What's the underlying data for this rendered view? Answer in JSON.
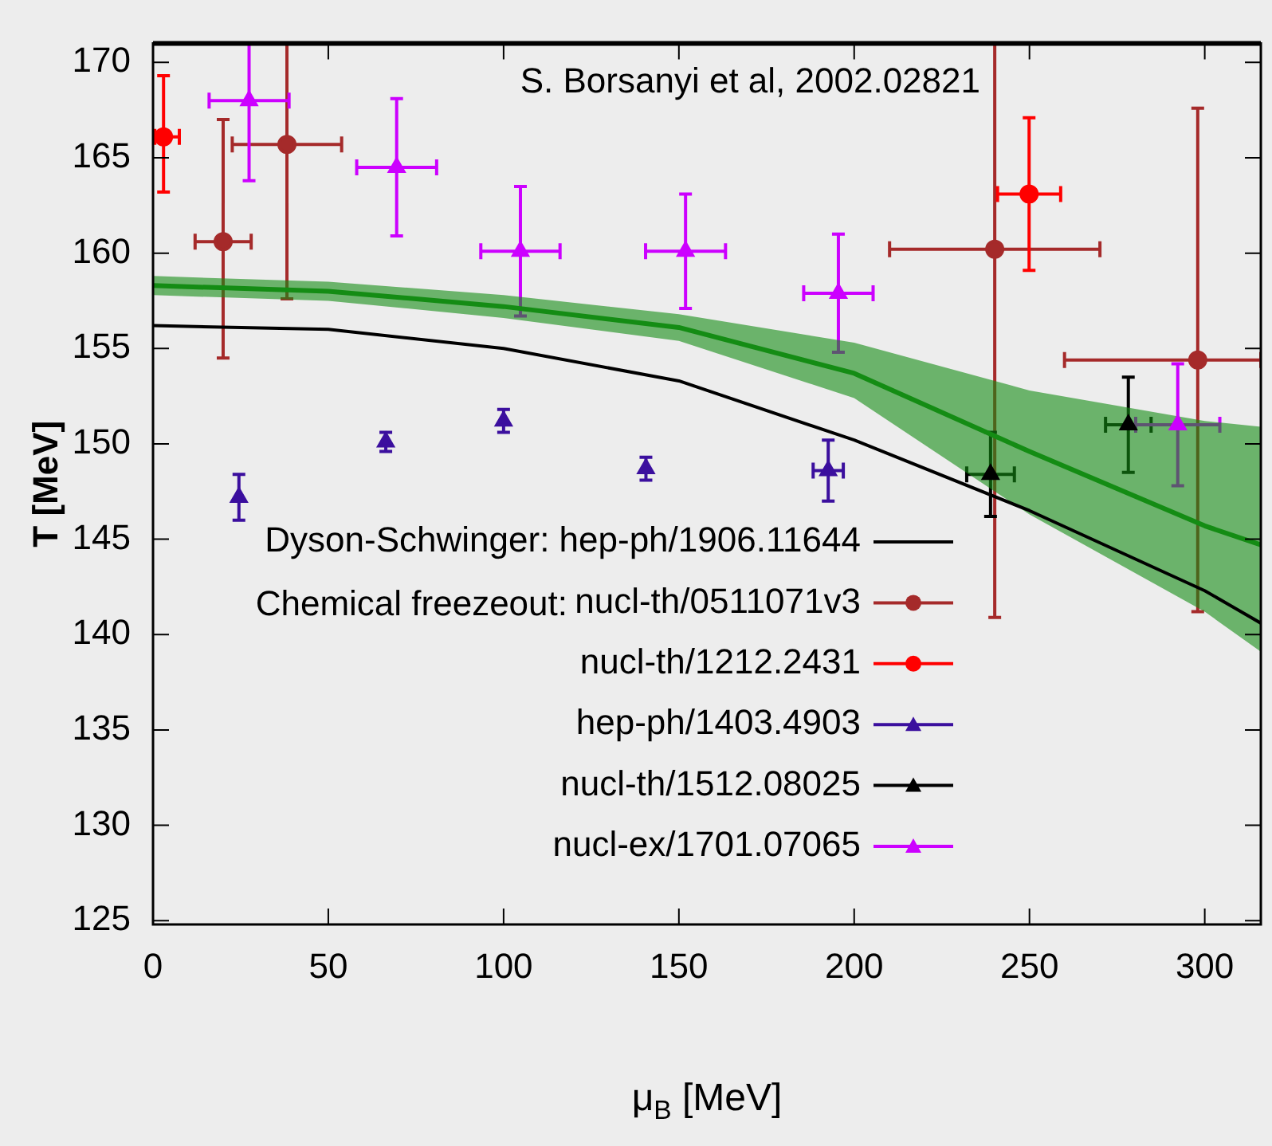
{
  "chart_data": {
    "type": "scatter",
    "xlabel": "μ$_{B}$ [MeV]",
    "ylabel": "T [MeV]",
    "xlim": [
      0,
      316
    ],
    "ylim": [
      124.8,
      171
    ],
    "xticks": [
      0,
      50,
      100,
      150,
      200,
      250,
      300
    ],
    "yticks": [
      125,
      130,
      135,
      140,
      145,
      150,
      155,
      160,
      165,
      170
    ],
    "grid": false,
    "legend": "bottom",
    "annotations": [
      "S. Borsanyi et al, 2002.02821",
      "Chemical freezeout:"
    ],
    "series": [
      {
        "type": "line",
        "color": "#148c14",
        "marker": "none",
        "x": [
          0,
          50,
          100,
          150,
          200,
          250,
          300,
          316
        ],
        "values": [
          158.3,
          158.0,
          157.2,
          156.1,
          153.7,
          149.6,
          145.7,
          144.7
        ],
        "lower": [
          157.8,
          157.5,
          156.6,
          155.4,
          152.4,
          146.3,
          141.2,
          139.1
        ],
        "upper": [
          158.8,
          158.5,
          157.8,
          156.8,
          155.3,
          152.8,
          151.2,
          150.9
        ]
      },
      {
        "type": "line",
        "name": "Dyson-Schwinger: hep-ph/1906.11644",
        "color": "#000000",
        "marker": "none",
        "x": [
          0,
          50,
          100,
          150,
          200,
          250,
          300,
          316
        ],
        "values": [
          156.2,
          156.0,
          155.0,
          153.3,
          150.2,
          146.5,
          142.3,
          140.6
        ]
      },
      {
        "type": "scatter",
        "name": "nucl-th/0511071v3",
        "color": "#a52a2a",
        "marker": "circle",
        "x": [
          20,
          38.2,
          240.1,
          298
        ],
        "values": [
          160.6,
          165.7,
          160.2,
          154.4
        ],
        "errors": [
          [
            154.5,
            167
          ],
          [
            157.6,
            171
          ],
          [
            140.9,
            171
          ],
          [
            141.2,
            167.6
          ]
        ],
        "xerrors": [
          8,
          15.6,
          30,
          [
            260,
            316
          ]
        ]
      },
      {
        "type": "scatter",
        "name": "nucl-th/1212.2431",
        "color": "#ff0000",
        "marker": "circle",
        "x": [
          3,
          249.9
        ],
        "values": [
          166.1,
          163.1
        ],
        "errors": [
          [
            163.2,
            169.3
          ],
          4
        ],
        "xerrors": [
          [
            0.5,
            7.5
          ],
          9
        ]
      },
      {
        "type": "scatter",
        "name": "hep-ph/1403.4903",
        "color": "#3b0f9e",
        "marker": "triangle",
        "x": [
          24.5,
          66.4,
          100,
          140.6,
          192.6
        ],
        "values": [
          147.2,
          150.1,
          151.2,
          148.7,
          148.6
        ],
        "errors": [
          1.2,
          0.5,
          0.6,
          0.6,
          1.6
        ],
        "xerrors": [
          null,
          null,
          null,
          null,
          4.3
        ]
      },
      {
        "type": "scatter",
        "name": "nucl-th/1512.08025",
        "color": "#000000",
        "marker": "triangle",
        "x": [
          238.9,
          278.2
        ],
        "values": [
          148.4,
          151.0
        ],
        "errors": [
          2.2,
          2.5
        ],
        "xerrors": [
          6.8,
          6.5
        ]
      },
      {
        "type": "scatter",
        "name": "nucl-ex/1701.07065",
        "color": "#cc00ff",
        "marker": "triangle",
        "x": [
          27.4,
          69.5,
          104.8,
          151.9,
          195.5,
          292.3
        ],
        "values": [
          168.0,
          164.5,
          160.1,
          160.1,
          157.9,
          151.0
        ],
        "errors": [
          [
            163.8,
            171
          ],
          3.6,
          3.4,
          3,
          3.1,
          3.2
        ],
        "xerrors": [
          11.4,
          11.4,
          11.3,
          11.4,
          9.9,
          12
        ]
      }
    ]
  }
}
